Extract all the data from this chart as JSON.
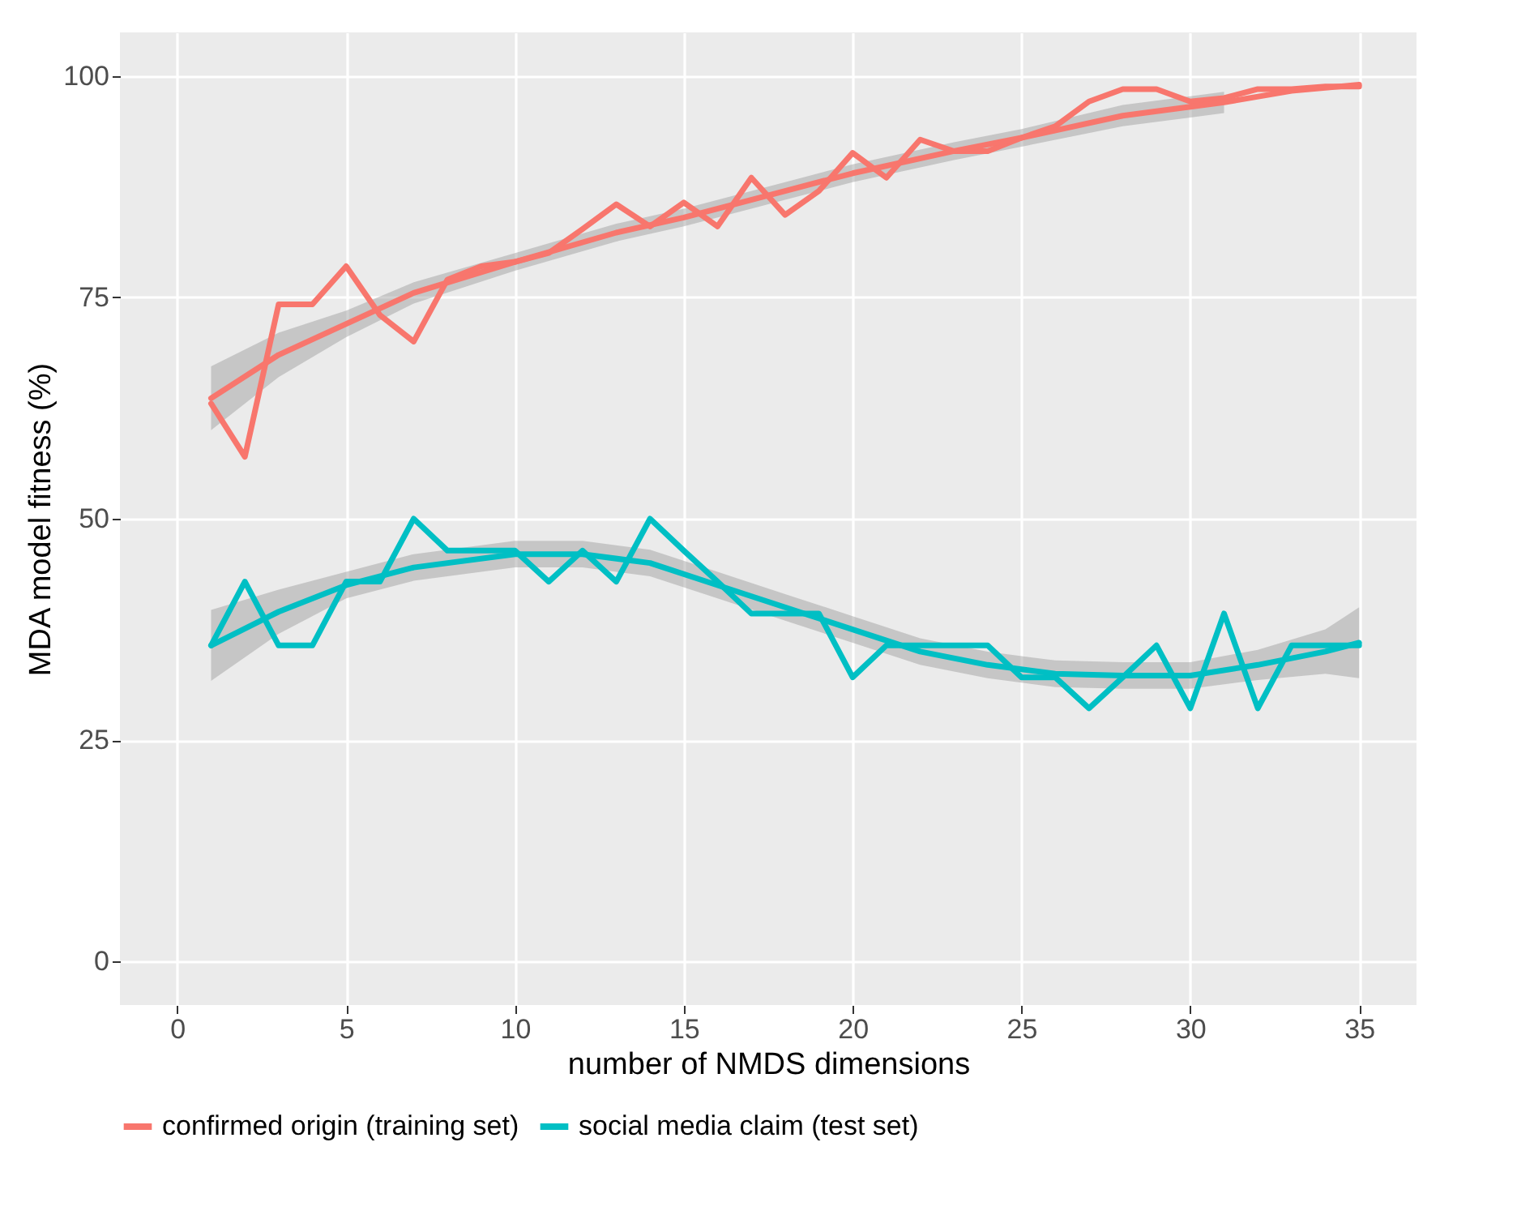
{
  "chart_data": {
    "type": "line",
    "xlabel": "number of NMDS dimensions",
    "ylabel": "MDA model fitness (%)",
    "xlim": [
      -1.7,
      36.7
    ],
    "ylim": [
      -4.9,
      104.9
    ],
    "xticks": [
      0,
      5,
      10,
      15,
      20,
      25,
      30,
      35
    ],
    "yticks": [
      0,
      25,
      50,
      75,
      100
    ],
    "grid": true,
    "legend": "bottom",
    "line_style": "solid",
    "marker": "none",
    "series": [
      {
        "name": "confirmed origin (training set)",
        "color": "#f8766d",
        "x": [
          1,
          2,
          3,
          4,
          5,
          6,
          7,
          8,
          9,
          10,
          11,
          12,
          13,
          14,
          15,
          16,
          17,
          18,
          19,
          20,
          21,
          22,
          23,
          24,
          25,
          26,
          27,
          28,
          29,
          30,
          31,
          32,
          33,
          34,
          35
        ],
        "values": [
          63,
          57,
          74.2,
          74.2,
          78.5,
          73,
          70,
          77,
          78.5,
          79,
          80,
          82.7,
          85.5,
          83,
          85.7,
          83,
          88.5,
          84.3,
          87,
          91.3,
          88.5,
          92.8,
          91.5,
          91.5,
          93,
          94.3,
          97.1,
          98.5,
          98.5,
          97.1,
          97.5,
          98.5,
          98.5,
          98.8,
          98.8
        ]
      },
      {
        "name": "social media claim (test set)",
        "color": "#00bfc4",
        "x": [
          1,
          2,
          3,
          4,
          5,
          6,
          7,
          8,
          9,
          10,
          11,
          12,
          13,
          14,
          15,
          16,
          17,
          18,
          19,
          20,
          21,
          22,
          23,
          24,
          25,
          26,
          27,
          28,
          29,
          30,
          31,
          32,
          33,
          34,
          35
        ],
        "values": [
          35.7,
          42.9,
          35.7,
          35.7,
          42.9,
          42.9,
          50,
          46.4,
          46.4,
          46.4,
          42.9,
          46.4,
          42.9,
          50,
          46.4,
          42.9,
          39.3,
          39.3,
          39.3,
          32.1,
          35.7,
          35.7,
          35.7,
          35.7,
          32.1,
          32.1,
          28.6,
          32.1,
          35.7,
          28.6,
          39.3,
          28.6,
          35.7,
          35.7,
          35.7
        ]
      },
      {
        "type": "line",
        "color": "#f8766d",
        "x": [
          1,
          3,
          5,
          7,
          10,
          13,
          15,
          18,
          20,
          23,
          25,
          28,
          30,
          31,
          33,
          35
        ],
        "values": [
          63.6,
          68.5,
          72,
          75.5,
          79,
          82.3,
          84,
          87,
          89,
          91.5,
          93,
          95.5,
          96.5,
          97,
          98.3,
          99
        ],
        "lower": [
          60,
          66,
          70.5,
          74.3,
          78,
          81.3,
          83,
          86,
          88,
          90.5,
          92,
          94.3,
          95.3,
          95.8,
          null,
          null
        ],
        "upper": [
          67.2,
          71,
          73.5,
          76.7,
          80,
          83.3,
          85,
          88,
          90,
          92.5,
          94,
          96.7,
          97.7,
          98.2,
          null,
          null
        ]
      },
      {
        "type": "line",
        "color": "#00bfc4",
        "x": [
          1,
          3,
          5,
          7,
          10,
          12,
          14,
          16,
          18,
          20,
          22,
          24,
          26,
          28,
          30,
          32,
          34,
          35
        ],
        "values": [
          35.7,
          39.5,
          42.5,
          44.5,
          46,
          46,
          45,
          42.5,
          40,
          37.5,
          35,
          33.5,
          32.5,
          32.3,
          32.3,
          33.5,
          35,
          36
        ],
        "lower": [
          31.7,
          37,
          41,
          43,
          44.5,
          44.5,
          43.5,
          41,
          38.5,
          36,
          33.5,
          32,
          31,
          30.8,
          30.8,
          31.8,
          32.5,
          32
        ],
        "upper": [
          39.7,
          42,
          44,
          46,
          47.5,
          47.5,
          46.5,
          44,
          41.5,
          39,
          36.5,
          35,
          34,
          33.8,
          33.8,
          35.2,
          37.5,
          40
        ]
      }
    ]
  }
}
